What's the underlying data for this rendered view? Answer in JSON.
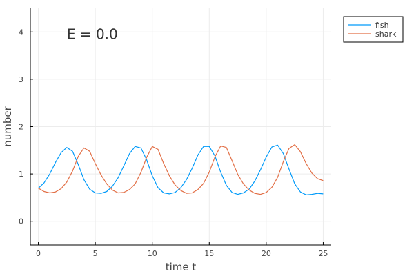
{
  "chart_data": {
    "type": "line",
    "title": "",
    "xlabel": "time t",
    "ylabel": "number",
    "xlim": [
      -0.7,
      25.7
    ],
    "ylim": [
      -0.5,
      4.5
    ],
    "xticks": [
      0,
      5,
      10,
      15,
      20,
      25
    ],
    "yticks": [
      0,
      1,
      2,
      3,
      4
    ],
    "xtick_labels": [
      "0",
      "5",
      "10",
      "15",
      "20",
      "25"
    ],
    "ytick_labels": [
      "0",
      "1",
      "2",
      "3",
      "4"
    ],
    "grid": true,
    "legend_position": "outside top-right",
    "annotation": {
      "text": "E = 0.0",
      "x": 2.5,
      "y": 3.95
    },
    "series": [
      {
        "name": "fish",
        "color": "#009af9",
        "x": [
          0,
          0.5,
          1,
          1.5,
          2,
          2.5,
          3,
          3.5,
          4,
          4.5,
          5,
          5.5,
          6,
          6.5,
          7,
          7.5,
          8,
          8.5,
          9,
          9.5,
          10,
          10.5,
          11,
          11.5,
          12,
          12.5,
          13,
          13.5,
          14,
          14.5,
          15,
          15.5,
          16,
          16.5,
          17,
          17.5,
          18,
          18.5,
          19,
          19.5,
          20,
          20.5,
          21,
          21.5,
          22,
          22.5,
          23,
          23.5,
          24,
          24.5,
          25
        ],
        "y": [
          0.7,
          0.81,
          1.0,
          1.24,
          1.45,
          1.56,
          1.48,
          1.2,
          0.88,
          0.68,
          0.6,
          0.59,
          0.63,
          0.74,
          0.92,
          1.17,
          1.43,
          1.58,
          1.55,
          1.3,
          0.96,
          0.71,
          0.6,
          0.58,
          0.61,
          0.71,
          0.88,
          1.12,
          1.4,
          1.58,
          1.58,
          1.38,
          1.04,
          0.76,
          0.61,
          0.57,
          0.6,
          0.68,
          0.85,
          1.09,
          1.36,
          1.57,
          1.61,
          1.43,
          1.1,
          0.79,
          0.62,
          0.56,
          0.57,
          0.59,
          0.58
        ]
      },
      {
        "name": "shark",
        "color": "#e26f46",
        "x": [
          0,
          0.5,
          1,
          1.5,
          2,
          2.5,
          3,
          3.5,
          4,
          4.5,
          5,
          5.5,
          6,
          6.5,
          7,
          7.5,
          8,
          8.5,
          9,
          9.5,
          10,
          10.5,
          11,
          11.5,
          12,
          12.5,
          13,
          13.5,
          14,
          14.5,
          15,
          15.5,
          16,
          16.5,
          17,
          17.5,
          18,
          18.5,
          19,
          19.5,
          20,
          20.5,
          21,
          21.5,
          22,
          22.5,
          23,
          23.5,
          24,
          24.5,
          25
        ],
        "y": [
          0.7,
          0.63,
          0.6,
          0.62,
          0.69,
          0.83,
          1.06,
          1.37,
          1.55,
          1.48,
          1.22,
          0.98,
          0.79,
          0.66,
          0.6,
          0.61,
          0.67,
          0.79,
          1.03,
          1.35,
          1.58,
          1.52,
          1.22,
          0.96,
          0.77,
          0.65,
          0.59,
          0.6,
          0.67,
          0.8,
          1.04,
          1.36,
          1.59,
          1.56,
          1.28,
          0.99,
          0.79,
          0.66,
          0.59,
          0.57,
          0.61,
          0.72,
          0.93,
          1.26,
          1.54,
          1.62,
          1.47,
          1.22,
          1.02,
          0.9,
          0.86
        ]
      }
    ]
  }
}
